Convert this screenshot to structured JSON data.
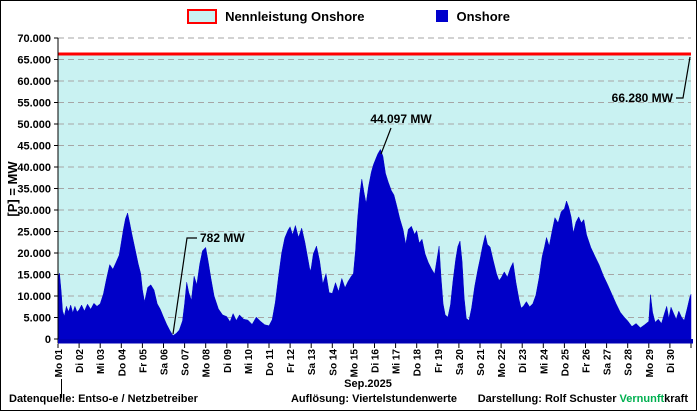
{
  "legend": {
    "nennleistung_label": "Nennleistung Onshore",
    "onshore_label": "Onshore"
  },
  "y_axis": {
    "title": "[P] = MW"
  },
  "x_axis": {
    "title": "Sep.2025"
  },
  "annotations": {
    "max_label": "44.097 MW",
    "min_label": "782 MW",
    "capacity_label": "66.280 MW"
  },
  "footer": {
    "source": "Datenquelle:  Entso-e  / Netzbetreiber",
    "resolution": "Auflösung: Viertelstundenwerte",
    "credit_prefix": "Darstellung:  Rolf Schuster  ",
    "credit_brand_green": "Vernunft",
    "credit_brand_black": "kraft"
  },
  "colors": {
    "onshore_fill": "#0000c8",
    "onshore_legend": "#0000cc",
    "capacity_line": "#ff0000",
    "capacity_fill": "#c9f2f2",
    "gridline": "#a6a6a6",
    "x_axis_line": "#0000b4",
    "axis_black": "#000000",
    "brand_green": "#00b050"
  },
  "chart_data": {
    "type": "area",
    "title": "",
    "xlabel": "Sep.2025",
    "ylabel": "[P] = MW",
    "ylim": [
      0,
      70000
    ],
    "y_tick_step": 5000,
    "grid": "dashed horizontal",
    "legend_position": "top center",
    "capacity_line_mw": 66280,
    "max_annotation_mw": 44097,
    "max_annotation_day": "Di 16",
    "min_annotation_mw": 782,
    "min_annotation_day": "Sa 06",
    "categories": [
      "Mo 01",
      "Di 02",
      "Mi 03",
      "Do 04",
      "Fr 05",
      "Sa 06",
      "So 07",
      "Mo 08",
      "Di 09",
      "Mi 10",
      "Do 11",
      "Fr 12",
      "Sa 13",
      "So 14",
      "Mo 15",
      "Di 16",
      "Mi 17",
      "Do 18",
      "Fr 19",
      "Sa 20",
      "So 21",
      "Mo 22",
      "Di 23",
      "Mi 24",
      "Do 25",
      "Fr 26",
      "Sa 27",
      "So 28",
      "Mo 29",
      "Di 30"
    ],
    "series": [
      {
        "name": "Onshore",
        "unit": "MW",
        "x_unit": "days (0 = start Mo 01 Sep 2025, quarter-hour resolution approximated)",
        "points": [
          [
            0,
            14300
          ],
          [
            0.07,
            15300
          ],
          [
            0.15,
            11000
          ],
          [
            0.22,
            6500
          ],
          [
            0.3,
            5300
          ],
          [
            0.4,
            7600
          ],
          [
            0.5,
            6300
          ],
          [
            0.6,
            7900
          ],
          [
            0.7,
            6100
          ],
          [
            0.8,
            7600
          ],
          [
            0.9,
            6300
          ],
          [
            1,
            6800
          ],
          [
            1.12,
            7900
          ],
          [
            1.25,
            6500
          ],
          [
            1.4,
            8100
          ],
          [
            1.55,
            6900
          ],
          [
            1.7,
            8300
          ],
          [
            1.85,
            7600
          ],
          [
            2,
            8200
          ],
          [
            2.15,
            10500
          ],
          [
            2.3,
            14000
          ],
          [
            2.45,
            17300
          ],
          [
            2.6,
            16200
          ],
          [
            2.75,
            17800
          ],
          [
            2.9,
            19500
          ],
          [
            3,
            22500
          ],
          [
            3.1,
            25500
          ],
          [
            3.2,
            28000
          ],
          [
            3.3,
            29300
          ],
          [
            3.4,
            27000
          ],
          [
            3.5,
            24500
          ],
          [
            3.65,
            21000
          ],
          [
            3.8,
            17500
          ],
          [
            3.92,
            15200
          ],
          [
            4,
            11500
          ],
          [
            4.1,
            8600
          ],
          [
            4.25,
            12000
          ],
          [
            4.4,
            12600
          ],
          [
            4.55,
            11400
          ],
          [
            4.7,
            8200
          ],
          [
            4.85,
            6900
          ],
          [
            5,
            5100
          ],
          [
            5.15,
            3400
          ],
          [
            5.3,
            2000
          ],
          [
            5.45,
            782
          ],
          [
            5.6,
            1300
          ],
          [
            5.75,
            2100
          ],
          [
            5.9,
            4200
          ],
          [
            6,
            8200
          ],
          [
            6.1,
            13200
          ],
          [
            6.2,
            10800
          ],
          [
            6.32,
            9000
          ],
          [
            6.45,
            14600
          ],
          [
            6.58,
            12600
          ],
          [
            6.72,
            17500
          ],
          [
            6.85,
            20500
          ],
          [
            7,
            21300
          ],
          [
            7.12,
            18000
          ],
          [
            7.25,
            14000
          ],
          [
            7.4,
            10000
          ],
          [
            7.6,
            7000
          ],
          [
            7.8,
            5600
          ],
          [
            8,
            5200
          ],
          [
            8.15,
            4000
          ],
          [
            8.3,
            5900
          ],
          [
            8.45,
            4300
          ],
          [
            8.6,
            5600
          ],
          [
            8.8,
            4600
          ],
          [
            9,
            4400
          ],
          [
            9.2,
            3400
          ],
          [
            9.4,
            5100
          ],
          [
            9.6,
            4100
          ],
          [
            9.8,
            3300
          ],
          [
            10,
            3100
          ],
          [
            10.15,
            4500
          ],
          [
            10.3,
            8500
          ],
          [
            10.45,
            14500
          ],
          [
            10.6,
            20000
          ],
          [
            10.75,
            23500
          ],
          [
            10.9,
            25300
          ],
          [
            11,
            26100
          ],
          [
            11.12,
            24200
          ],
          [
            11.25,
            26400
          ],
          [
            11.4,
            23600
          ],
          [
            11.55,
            25800
          ],
          [
            11.7,
            22500
          ],
          [
            11.85,
            18500
          ],
          [
            11.95,
            15800
          ],
          [
            12,
            16500
          ],
          [
            12.1,
            19800
          ],
          [
            12.25,
            21600
          ],
          [
            12.4,
            18200
          ],
          [
            12.55,
            12800
          ],
          [
            12.7,
            15200
          ],
          [
            12.85,
            10800
          ],
          [
            13,
            10600
          ],
          [
            13.15,
            13100
          ],
          [
            13.3,
            11000
          ],
          [
            13.45,
            14100
          ],
          [
            13.6,
            11900
          ],
          [
            13.75,
            13400
          ],
          [
            13.9,
            14600
          ],
          [
            14,
            15200
          ],
          [
            14.1,
            20500
          ],
          [
            14.2,
            28000
          ],
          [
            14.3,
            33500
          ],
          [
            14.4,
            37200
          ],
          [
            14.5,
            34200
          ],
          [
            14.6,
            31500
          ],
          [
            14.72,
            35500
          ],
          [
            14.85,
            38800
          ],
          [
            14.95,
            40500
          ],
          [
            15.05,
            41800
          ],
          [
            15.15,
            43000
          ],
          [
            15.28,
            44097
          ],
          [
            15.4,
            42500
          ],
          [
            15.52,
            38500
          ],
          [
            15.65,
            36500
          ],
          [
            15.8,
            34500
          ],
          [
            15.92,
            33500
          ],
          [
            16.05,
            31000
          ],
          [
            16.2,
            28000
          ],
          [
            16.35,
            25500
          ],
          [
            16.48,
            22000
          ],
          [
            16.6,
            25500
          ],
          [
            16.75,
            26200
          ],
          [
            16.9,
            24300
          ],
          [
            17,
            25200
          ],
          [
            17.12,
            22300
          ],
          [
            17.25,
            23200
          ],
          [
            17.4,
            19800
          ],
          [
            17.55,
            17800
          ],
          [
            17.7,
            16300
          ],
          [
            17.85,
            15100
          ],
          [
            18,
            19800
          ],
          [
            18.06,
            21600
          ],
          [
            18.15,
            14500
          ],
          [
            18.25,
            8200
          ],
          [
            18.35,
            5600
          ],
          [
            18.48,
            5100
          ],
          [
            18.6,
            8000
          ],
          [
            18.72,
            13500
          ],
          [
            18.85,
            18500
          ],
          [
            18.95,
            21500
          ],
          [
            19.05,
            22800
          ],
          [
            19.15,
            18000
          ],
          [
            19.25,
            9500
          ],
          [
            19.35,
            4800
          ],
          [
            19.48,
            4300
          ],
          [
            19.6,
            7200
          ],
          [
            19.75,
            12200
          ],
          [
            19.9,
            16200
          ],
          [
            20,
            18500
          ],
          [
            20.12,
            21500
          ],
          [
            20.25,
            24200
          ],
          [
            20.35,
            22000
          ],
          [
            20.48,
            21400
          ],
          [
            20.62,
            18400
          ],
          [
            20.78,
            15200
          ],
          [
            20.9,
            13600
          ],
          [
            21,
            14200
          ],
          [
            21.15,
            15600
          ],
          [
            21.3,
            14400
          ],
          [
            21.45,
            16600
          ],
          [
            21.57,
            17800
          ],
          [
            21.7,
            13200
          ],
          [
            21.85,
            9200
          ],
          [
            21.95,
            7200
          ],
          [
            22.05,
            7600
          ],
          [
            22.2,
            8700
          ],
          [
            22.35,
            7500
          ],
          [
            22.5,
            8200
          ],
          [
            22.65,
            10200
          ],
          [
            22.8,
            14200
          ],
          [
            22.95,
            19200
          ],
          [
            23.05,
            21300
          ],
          [
            23.15,
            23600
          ],
          [
            23.28,
            21600
          ],
          [
            23.42,
            25200
          ],
          [
            23.55,
            28200
          ],
          [
            23.7,
            27000
          ],
          [
            23.85,
            29600
          ],
          [
            24,
            30300
          ],
          [
            24.1,
            32100
          ],
          [
            24.2,
            30800
          ],
          [
            24.32,
            28300
          ],
          [
            24.42,
            24600
          ],
          [
            24.55,
            27200
          ],
          [
            24.68,
            28400
          ],
          [
            24.8,
            27000
          ],
          [
            24.92,
            27800
          ],
          [
            25.05,
            24200
          ],
          [
            25.25,
            21300
          ],
          [
            25.45,
            19200
          ],
          [
            25.65,
            17200
          ],
          [
            25.85,
            14700
          ],
          [
            26.05,
            12600
          ],
          [
            26.25,
            10400
          ],
          [
            26.45,
            8200
          ],
          [
            26.65,
            6200
          ],
          [
            26.85,
            5000
          ],
          [
            27,
            4200
          ],
          [
            27.2,
            2900
          ],
          [
            27.4,
            3600
          ],
          [
            27.6,
            2600
          ],
          [
            27.8,
            3300
          ],
          [
            28,
            4100
          ],
          [
            28.08,
            10300
          ],
          [
            28.18,
            6200
          ],
          [
            28.3,
            3900
          ],
          [
            28.45,
            4600
          ],
          [
            28.6,
            3600
          ],
          [
            28.72,
            5600
          ],
          [
            28.85,
            7600
          ],
          [
            28.95,
            4800
          ],
          [
            29.05,
            7400
          ],
          [
            29.18,
            5900
          ],
          [
            29.3,
            4600
          ],
          [
            29.42,
            6500
          ],
          [
            29.55,
            5100
          ],
          [
            29.68,
            4300
          ],
          [
            29.82,
            7100
          ],
          [
            29.95,
            9800
          ],
          [
            30,
            10400
          ]
        ]
      }
    ]
  }
}
